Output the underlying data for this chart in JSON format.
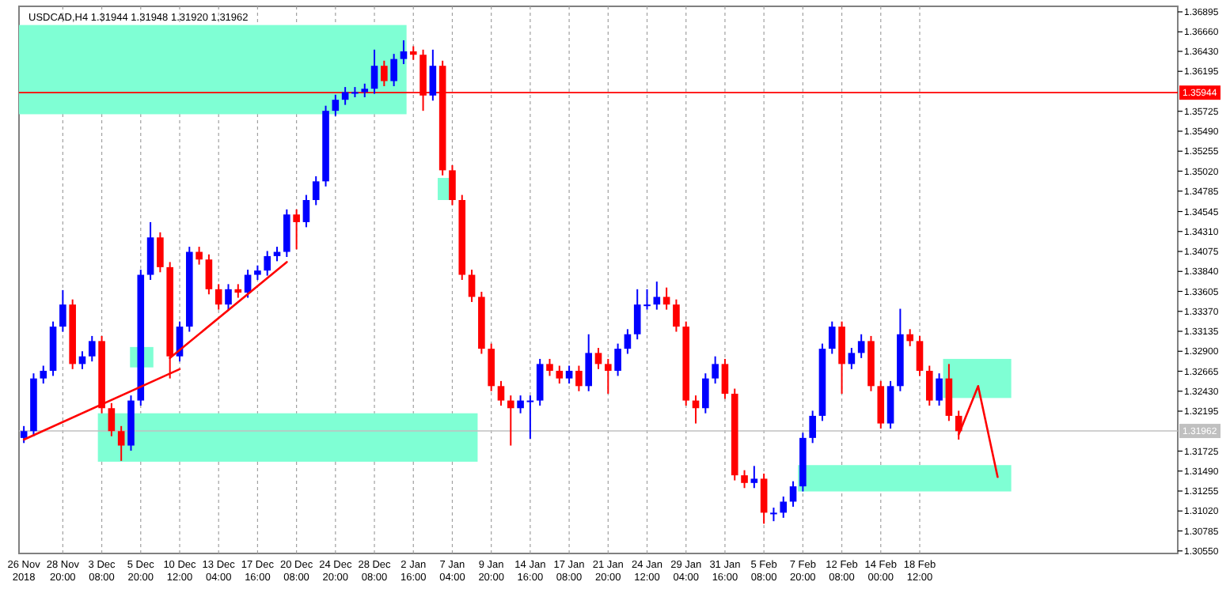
{
  "chart_data": {
    "type": "candlestick",
    "title": "USDCAD,H4  1.31944 1.31948 1.31920 1.31962",
    "categories": [
      "26 Nov 2018",
      null,
      null,
      null,
      "28 Nov 20:00",
      null,
      null,
      null,
      "3 Dec 08:00",
      null,
      null,
      null,
      "5 Dec 20:00",
      null,
      null,
      null,
      "10 Dec 12:00",
      null,
      null,
      null,
      "13 Dec 04:00",
      null,
      null,
      null,
      "17 Dec 16:00",
      null,
      null,
      null,
      "20 Dec 08:00",
      null,
      null,
      null,
      "24 Dec 20:00",
      null,
      null,
      null,
      "28 Dec 08:00",
      null,
      null,
      null,
      "2 Jan 16:00",
      null,
      null,
      null,
      "7 Jan 04:00",
      null,
      null,
      null,
      "9 Jan 20:00",
      null,
      null,
      null,
      "14 Jan 16:00",
      null,
      null,
      null,
      "17 Jan 08:00",
      null,
      null,
      null,
      "21 Jan 20:00",
      null,
      null,
      null,
      "24 Jan 12:00",
      null,
      null,
      null,
      "29 Jan 04:00",
      null,
      null,
      null,
      "31 Jan 16:00",
      null,
      null,
      null,
      "5 Feb 08:00",
      null,
      null,
      null,
      "7 Feb 20:00",
      null,
      null,
      null,
      "12 Feb 08:00",
      null,
      null,
      null,
      "14 Feb 00:00",
      null,
      null,
      null,
      "18 Feb 12:00",
      null,
      null,
      null,
      null,
      null,
      null,
      null,
      null,
      null,
      null,
      null,
      null,
      null,
      null,
      null,
      null,
      null,
      null,
      null,
      null,
      null,
      null,
      null,
      null,
      null,
      null
    ],
    "ohlc": [
      [
        1.3188,
        1.3202,
        1.3182,
        1.3196
      ],
      [
        1.3196,
        1.3264,
        1.319,
        1.3258
      ],
      [
        1.3258,
        1.3273,
        1.3252,
        1.3267
      ],
      [
        1.3267,
        1.3325,
        1.3261,
        1.3319
      ],
      [
        1.3319,
        1.3362,
        1.3313,
        1.3345
      ],
      [
        1.3345,
        1.3351,
        1.3269,
        1.3275
      ],
      [
        1.3275,
        1.329,
        1.3269,
        1.3284
      ],
      [
        1.3284,
        1.3308,
        1.3278,
        1.3302
      ],
      [
        1.3302,
        1.3308,
        1.3217,
        1.3223
      ],
      [
        1.3223,
        1.3229,
        1.319,
        1.3196
      ],
      [
        1.3196,
        1.3202,
        1.3161,
        1.3179
      ],
      [
        1.3179,
        1.3238,
        1.3173,
        1.3232
      ],
      [
        1.3232,
        1.3386,
        1.3226,
        1.338
      ],
      [
        1.338,
        1.3442,
        1.3374,
        1.3424
      ],
      [
        1.3424,
        1.343,
        1.3383,
        1.3389
      ],
      [
        1.3389,
        1.3395,
        1.3258,
        1.3284
      ],
      [
        1.3284,
        1.3325,
        1.3278,
        1.3319
      ],
      [
        1.3319,
        1.3413,
        1.3313,
        1.3407
      ],
      [
        1.3407,
        1.3413,
        1.3392,
        1.3398
      ],
      [
        1.3398,
        1.3404,
        1.3357,
        1.3363
      ],
      [
        1.3363,
        1.3369,
        1.3339,
        1.3345
      ],
      [
        1.3345,
        1.3369,
        1.3339,
        1.3363
      ],
      [
        1.3363,
        1.3369,
        1.3353,
        1.3359
      ],
      [
        1.3359,
        1.3386,
        1.3353,
        1.338
      ],
      [
        1.338,
        1.3391,
        1.3374,
        1.3385
      ],
      [
        1.3385,
        1.3408,
        1.3379,
        1.3402
      ],
      [
        1.3402,
        1.3413,
        1.3396,
        1.3407
      ],
      [
        1.3407,
        1.3457,
        1.3401,
        1.3451
      ],
      [
        1.3451,
        1.3457,
        1.341,
        1.3442
      ],
      [
        1.3442,
        1.3474,
        1.3436,
        1.3468
      ],
      [
        1.3468,
        1.3496,
        1.3462,
        1.349
      ],
      [
        1.349,
        1.3579,
        1.3484,
        1.3573
      ],
      [
        1.3573,
        1.3592,
        1.3567,
        1.3586
      ],
      [
        1.3586,
        1.3601,
        1.358,
        1.3595
      ],
      [
        1.3595,
        1.3601,
        1.3589,
        1.3595
      ],
      [
        1.3595,
        1.3605,
        1.3589,
        1.3599
      ],
      [
        1.3599,
        1.3645,
        1.3593,
        1.3626
      ],
      [
        1.3626,
        1.3632,
        1.3602,
        1.3608
      ],
      [
        1.3608,
        1.364,
        1.3602,
        1.3634
      ],
      [
        1.3634,
        1.3656,
        1.3628,
        1.3643
      ],
      [
        1.3643,
        1.3649,
        1.3633,
        1.3639
      ],
      [
        1.3639,
        1.3645,
        1.3573,
        1.3591
      ],
      [
        1.3591,
        1.3645,
        1.3585,
        1.3626
      ],
      [
        1.3626,
        1.3632,
        1.3497,
        1.3503
      ],
      [
        1.3503,
        1.3509,
        1.3462,
        1.3468
      ],
      [
        1.3468,
        1.3474,
        1.3374,
        1.338
      ],
      [
        1.338,
        1.3386,
        1.3348,
        1.3354
      ],
      [
        1.3354,
        1.336,
        1.3287,
        1.3293
      ],
      [
        1.3293,
        1.3299,
        1.3243,
        1.3249
      ],
      [
        1.3249,
        1.3255,
        1.3226,
        1.3232
      ],
      [
        1.3232,
        1.3238,
        1.3179,
        1.3223
      ],
      [
        1.3223,
        1.3238,
        1.3217,
        1.3232
      ],
      [
        1.3232,
        1.3238,
        1.3187,
        1.3232
      ],
      [
        1.3232,
        1.3281,
        1.3226,
        1.3275
      ],
      [
        1.3275,
        1.3281,
        1.3261,
        1.3267
      ],
      [
        1.3267,
        1.3273,
        1.3252,
        1.3258
      ],
      [
        1.3258,
        1.3273,
        1.3252,
        1.3267
      ],
      [
        1.3267,
        1.3273,
        1.3243,
        1.3249
      ],
      [
        1.3249,
        1.331,
        1.3243,
        1.3288
      ],
      [
        1.3288,
        1.3294,
        1.3269,
        1.3275
      ],
      [
        1.3275,
        1.3281,
        1.324,
        1.3267
      ],
      [
        1.3267,
        1.3299,
        1.3261,
        1.3293
      ],
      [
        1.3293,
        1.3316,
        1.3287,
        1.331
      ],
      [
        1.331,
        1.3363,
        1.3304,
        1.3345
      ],
      [
        1.3345,
        1.3363,
        1.3339,
        1.3345
      ],
      [
        1.3345,
        1.3372,
        1.3339,
        1.3354
      ],
      [
        1.3354,
        1.3365,
        1.3339,
        1.3345
      ],
      [
        1.3345,
        1.3351,
        1.3313,
        1.3319
      ],
      [
        1.3319,
        1.3325,
        1.3226,
        1.3232
      ],
      [
        1.3232,
        1.3238,
        1.3205,
        1.3223
      ],
      [
        1.3223,
        1.3264,
        1.3217,
        1.3258
      ],
      [
        1.3258,
        1.3284,
        1.3252,
        1.3275
      ],
      [
        1.3275,
        1.3281,
        1.3234,
        1.324
      ],
      [
        1.324,
        1.3246,
        1.3138,
        1.3144
      ],
      [
        1.3144,
        1.315,
        1.3129,
        1.3135
      ],
      [
        1.3135,
        1.3155,
        1.3129,
        1.314
      ],
      [
        1.314,
        1.3146,
        1.3087,
        1.31
      ],
      [
        1.31,
        1.3106,
        1.309,
        1.31
      ],
      [
        1.31,
        1.3119,
        1.3094,
        1.3113
      ],
      [
        1.3113,
        1.3137,
        1.3107,
        1.3131
      ],
      [
        1.3131,
        1.3194,
        1.3125,
        1.3188
      ],
      [
        1.3188,
        1.322,
        1.3182,
        1.3214
      ],
      [
        1.3214,
        1.3299,
        1.3208,
        1.3293
      ],
      [
        1.3293,
        1.3325,
        1.3287,
        1.3319
      ],
      [
        1.3319,
        1.3325,
        1.324,
        1.3275
      ],
      [
        1.3275,
        1.3294,
        1.3269,
        1.3288
      ],
      [
        1.3288,
        1.331,
        1.3282,
        1.3302
      ],
      [
        1.3302,
        1.3308,
        1.3243,
        1.3249
      ],
      [
        1.3249,
        1.3255,
        1.3199,
        1.3205
      ],
      [
        1.3205,
        1.3255,
        1.3199,
        1.3249
      ],
      [
        1.3249,
        1.334,
        1.3243,
        1.331
      ],
      [
        1.331,
        1.3316,
        1.3296,
        1.3302
      ],
      [
        1.3302,
        1.3308,
        1.3261,
        1.3267
      ],
      [
        1.3267,
        1.3273,
        1.3226,
        1.3232
      ],
      [
        1.3232,
        1.3264,
        1.3226,
        1.3258
      ],
      [
        1.3258,
        1.3275,
        1.3208,
        1.3214
      ],
      [
        1.3214,
        1.322,
        1.3186,
        1.3196
      ],
      null,
      null,
      null,
      null,
      null,
      null,
      null,
      null,
      null,
      null,
      null,
      null,
      null,
      null,
      null,
      null,
      null,
      null,
      null,
      null,
      null,
      null
    ],
    "series": [
      {
        "type": "line",
        "color": "#ff0000",
        "values": [
          1.3186,
          null,
          null,
          null,
          null,
          null,
          null,
          null,
          null,
          null,
          null,
          null,
          null,
          null,
          null,
          null,
          1.3269,
          null,
          null,
          null,
          null,
          null,
          null,
          null,
          null,
          null,
          null,
          null,
          null,
          null,
          null,
          null,
          null,
          null,
          null,
          null,
          null,
          null,
          null,
          null,
          null,
          null,
          null,
          null,
          null,
          null,
          null,
          null,
          null,
          null,
          null,
          null,
          null,
          null,
          null,
          null,
          null,
          null,
          null,
          null,
          null,
          null,
          null,
          null,
          null,
          null,
          null,
          null,
          null,
          null,
          null,
          null,
          null,
          null,
          null,
          null,
          null,
          null,
          null,
          null,
          null,
          null,
          null,
          null,
          null,
          null,
          null,
          null,
          null,
          null,
          null,
          null,
          null,
          null,
          null,
          null,
          null,
          null,
          null,
          null,
          null,
          null,
          null,
          null,
          null,
          null,
          null,
          null,
          null,
          null,
          null,
          null,
          null,
          null,
          null,
          null,
          null,
          null,
          null
        ]
      },
      {
        "type": "line",
        "color": "#ff0000",
        "values": [
          null,
          null,
          null,
          null,
          null,
          null,
          null,
          null,
          null,
          null,
          null,
          null,
          null,
          null,
          null,
          1.3282,
          null,
          null,
          null,
          null,
          null,
          null,
          null,
          null,
          null,
          null,
          null,
          1.3395,
          null,
          null,
          null,
          null,
          null,
          null,
          null,
          null,
          null,
          null,
          null,
          null,
          null,
          null,
          null,
          null,
          null,
          null,
          null,
          null,
          null,
          null,
          null,
          null,
          null,
          null,
          null,
          null,
          null,
          null,
          null,
          null,
          null,
          null,
          null,
          null,
          null,
          null,
          null,
          null,
          null,
          null,
          null,
          null,
          null,
          null,
          null,
          null,
          null,
          null,
          null,
          null,
          null,
          null,
          null,
          null,
          null,
          null,
          null,
          null,
          null,
          null,
          null,
          null,
          null,
          null,
          null,
          null,
          null,
          null,
          null,
          null,
          null,
          null,
          null,
          null,
          null,
          null,
          null,
          null,
          null,
          null,
          null,
          null,
          null,
          null,
          null,
          null,
          null,
          null,
          null
        ]
      },
      {
        "type": "line",
        "color": "#ff0000",
        "values": [
          null,
          null,
          null,
          null,
          null,
          null,
          null,
          null,
          null,
          null,
          null,
          null,
          null,
          null,
          null,
          null,
          null,
          null,
          null,
          null,
          null,
          null,
          null,
          null,
          null,
          null,
          null,
          null,
          null,
          null,
          null,
          null,
          null,
          null,
          null,
          null,
          null,
          null,
          null,
          null,
          null,
          null,
          null,
          null,
          null,
          null,
          null,
          null,
          null,
          null,
          null,
          null,
          null,
          null,
          null,
          null,
          null,
          null,
          null,
          null,
          null,
          null,
          null,
          null,
          null,
          null,
          null,
          null,
          null,
          null,
          null,
          null,
          null,
          null,
          null,
          null,
          null,
          null,
          null,
          null,
          null,
          null,
          null,
          null,
          null,
          null,
          null,
          null,
          null,
          null,
          null,
          null,
          null,
          null,
          null,
          null,
          1.3192,
          null,
          1.3249,
          null,
          1.3142,
          null,
          null,
          null,
          null,
          null,
          null,
          null,
          null,
          null,
          null,
          null,
          null,
          null,
          null,
          null,
          null,
          null,
          null
        ]
      }
    ],
    "ref_lines": [
      {
        "axis": "y",
        "value": 1.35944,
        "label": "1.35944",
        "color": "#ff0000"
      },
      {
        "axis": "y",
        "value": 1.31962,
        "label": "1.31962",
        "color": "#c0c0c0"
      }
    ],
    "ylim": [
      1.3052,
      1.3696
    ],
    "yticks": [
      {
        "value": 1.3055,
        "label": "1.30550"
      },
      {
        "value": 1.30785,
        "label": "1.30785"
      },
      {
        "value": 1.3102,
        "label": "1.31020"
      },
      {
        "value": 1.31255,
        "label": "1.31255"
      },
      {
        "value": 1.3149,
        "label": "1.31490"
      },
      {
        "value": 1.31725,
        "label": "1.31725"
      },
      {
        "value": 1.32195,
        "label": "1.32195"
      },
      {
        "value": 1.3243,
        "label": "1.32430"
      },
      {
        "value": 1.32665,
        "label": "1.32665"
      },
      {
        "value": 1.329,
        "label": "1.32900"
      },
      {
        "value": 1.33135,
        "label": "1.33135"
      },
      {
        "value": 1.3337,
        "label": "1.33370"
      },
      {
        "value": 1.33605,
        "label": "1.33605"
      },
      {
        "value": 1.3384,
        "label": "1.33840"
      },
      {
        "value": 1.34075,
        "label": "1.34075"
      },
      {
        "value": 1.3431,
        "label": "1.34310"
      },
      {
        "value": 1.34545,
        "label": "1.34545"
      },
      {
        "value": 1.34785,
        "label": "1.34785"
      },
      {
        "value": 1.3502,
        "label": "1.35020"
      },
      {
        "value": 1.35255,
        "label": "1.35255"
      },
      {
        "value": 1.3549,
        "label": "1.35490"
      },
      {
        "value": 1.35725,
        "label": "1.35725"
      },
      {
        "value": 1.36195,
        "label": "1.36195"
      },
      {
        "value": 1.3643,
        "label": "1.36430"
      },
      {
        "value": 1.3666,
        "label": "1.36660"
      },
      {
        "value": 1.36895,
        "label": "1.36895"
      }
    ],
    "grid": "x"
  }
}
